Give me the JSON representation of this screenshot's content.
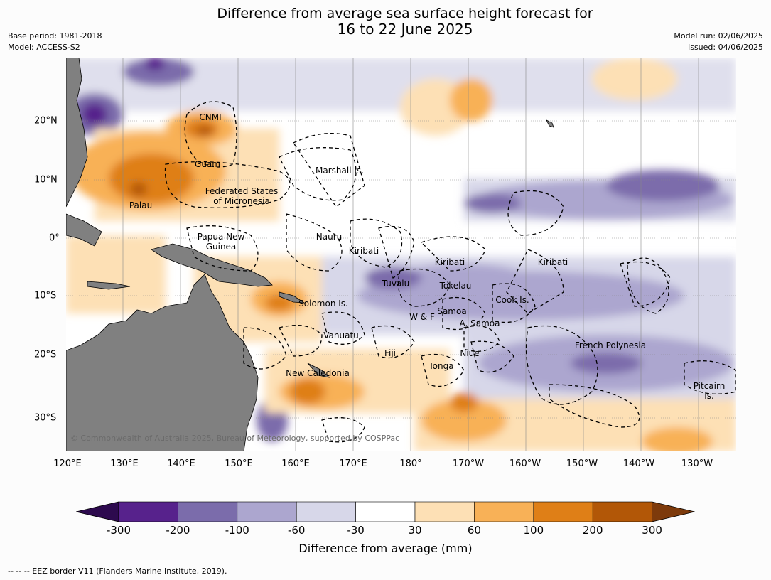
{
  "title_line1": "Difference from average sea surface height forecast for",
  "title_line2": "16 to 22 June 2025",
  "base_period": "Base period: 1981-2018",
  "model": "Model: ACCESS-S2",
  "model_run": "Model run: 02/06/2025",
  "issued": "Issued: 04/06/2025",
  "lon_labels": [
    "120°E",
    "130°E",
    "140°E",
    "150°E",
    "160°E",
    "170°E",
    "180°",
    "170°W",
    "160°W",
    "150°W",
    "140°W",
    "130°W"
  ],
  "lat_labels": [
    "20°N",
    "10°N",
    "0°",
    "10°S",
    "20°S",
    "30°S"
  ],
  "regions": {
    "cnmi": "CNMI",
    "guam": "Guam",
    "palau": "Palau",
    "fsm_1": "Federated States",
    "fsm_2": "of Micronesia",
    "marshall": "Marshall Is.",
    "png_1": "Papua New",
    "png_2": "Guinea",
    "nauru": "Nauru",
    "kiribati_w": "Kiribati",
    "kiribati_c": "Kiribati",
    "kiribati_e": "Kiribati",
    "tuvalu": "Tuvalu",
    "tokelau": "Tokelau",
    "solomon": "Solomon Is.",
    "cook": "Cook Is.",
    "samoa": "Samoa",
    "wf": "W & F",
    "asamoa": "A. Samoa",
    "vanuatu": "Vanuatu",
    "fiji": "Fiji",
    "niue": "Niue",
    "frpoly": "French Polynesia",
    "tonga": "Tonga",
    "newcal": "New Caledonia",
    "pitcairn_1": "Pitcairn",
    "pitcairn_2": "Is."
  },
  "credit": "© Commonwealth of Australia 2025, Bureau of Meteorology, supported by COSPPac",
  "colorbar": {
    "ticks": [
      "-300",
      "-200",
      "-100",
      "-60",
      "-30",
      "30",
      "60",
      "100",
      "200",
      "300"
    ],
    "colors": [
      "#2d0a4e",
      "#57228c",
      "#7b6cab",
      "#aca6cf",
      "#d7d7e9",
      "#ffffff",
      "#fde0b5",
      "#f8b157",
      "#df7f17",
      "#b25707",
      "#7d3a0b"
    ],
    "label": "Difference from average (mm)"
  },
  "footer": "--  --  -- EEZ border V11 (Flanders Marine Institute, 2019).",
  "colors": {
    "land": "#808080",
    "eez": "#000000"
  }
}
